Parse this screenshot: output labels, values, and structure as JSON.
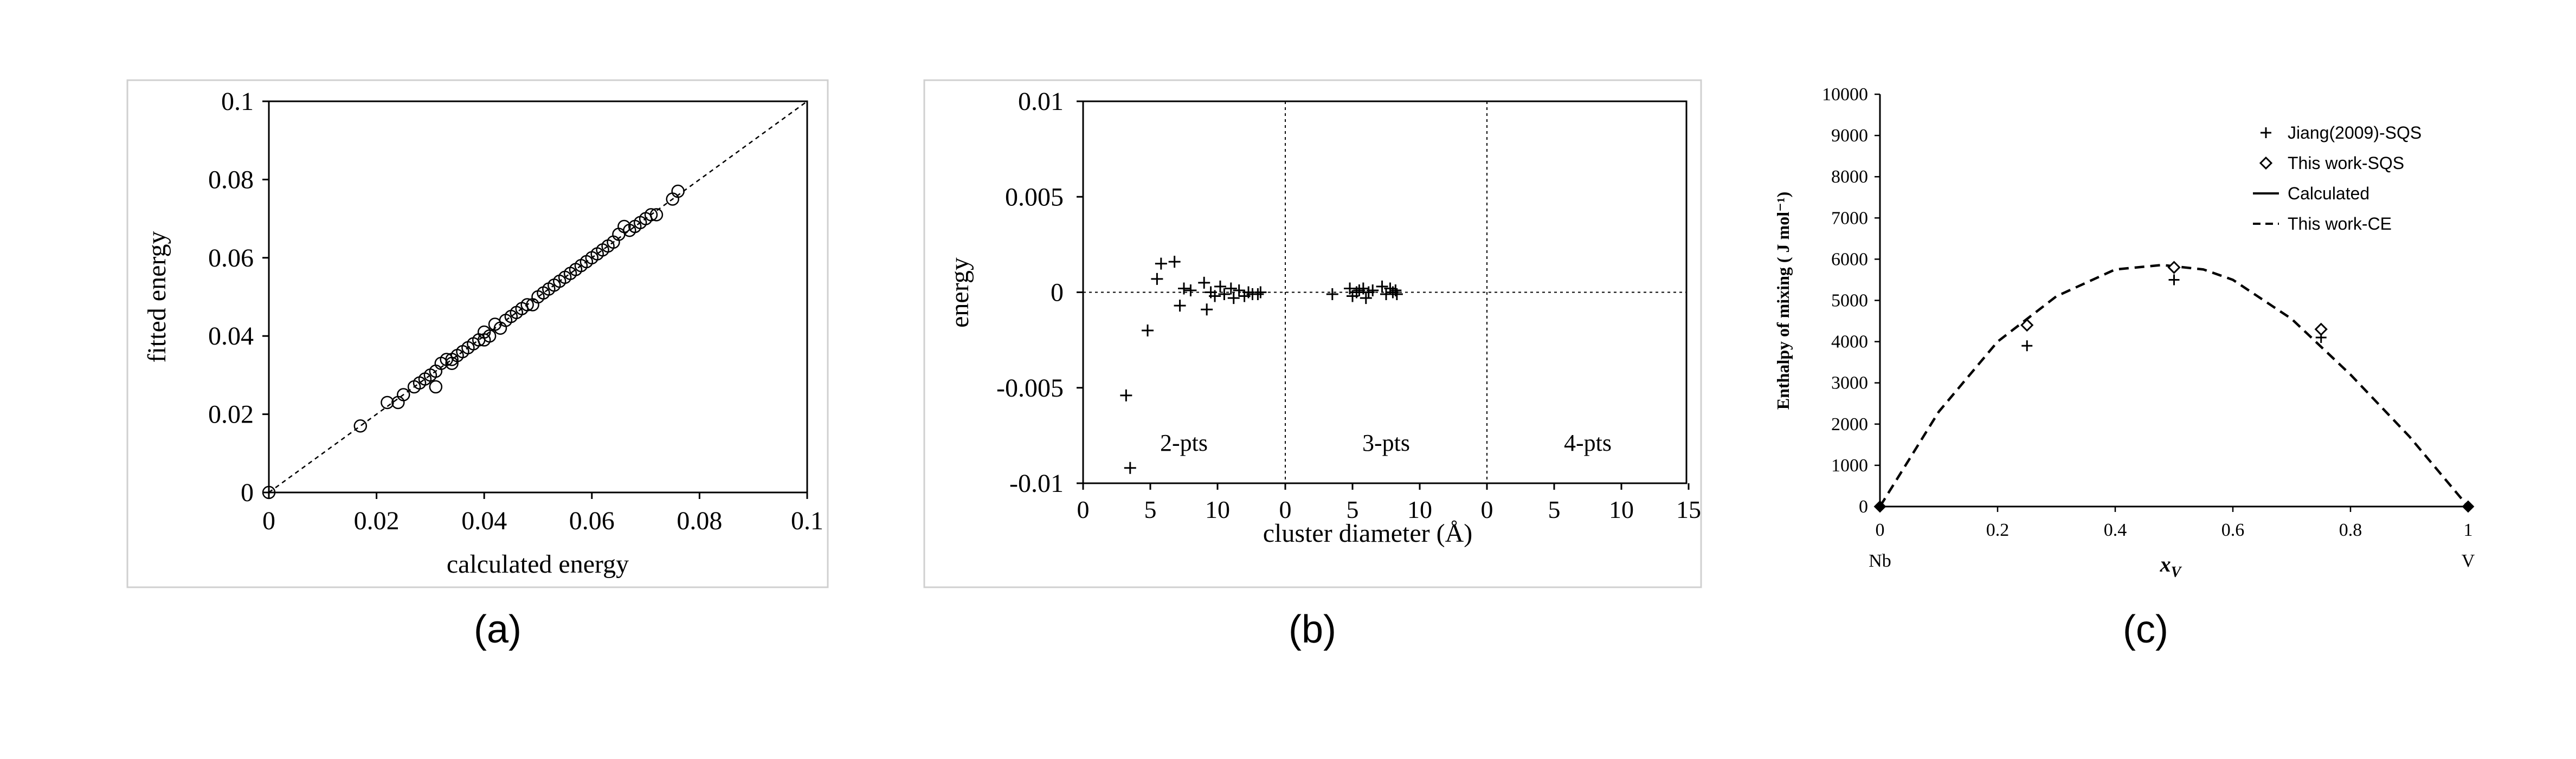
{
  "colors": {
    "ink": "#000000",
    "panel_border": "#d0d0d0",
    "background": "#ffffff"
  },
  "chart_data": [
    {
      "type": "scatter",
      "caption": "(a)",
      "xlabel": "calculated energy",
      "ylabel": "fitted energy",
      "xlim": [
        0,
        0.1
      ],
      "ylim": [
        0,
        0.1
      ],
      "x_ticks": [
        "0",
        "0.02",
        "0.04",
        "0.06",
        "0.08",
        "0.1"
      ],
      "y_ticks": [
        "0",
        "0.02",
        "0.04",
        "0.06",
        "0.08",
        "0.1"
      ],
      "reference_line": "y = x (dashed)",
      "marker": "open-circle",
      "points": [
        [
          0,
          0
        ],
        [
          0.017,
          0.017
        ],
        [
          0.022,
          0.023
        ],
        [
          0.024,
          0.023
        ],
        [
          0.025,
          0.025
        ],
        [
          0.027,
          0.027
        ],
        [
          0.028,
          0.028
        ],
        [
          0.029,
          0.029
        ],
        [
          0.03,
          0.03
        ],
        [
          0.031,
          0.031
        ],
        [
          0.031,
          0.027
        ],
        [
          0.032,
          0.033
        ],
        [
          0.033,
          0.034
        ],
        [
          0.034,
          0.034
        ],
        [
          0.034,
          0.033
        ],
        [
          0.035,
          0.035
        ],
        [
          0.036,
          0.036
        ],
        [
          0.037,
          0.037
        ],
        [
          0.038,
          0.038
        ],
        [
          0.039,
          0.039
        ],
        [
          0.04,
          0.039
        ],
        [
          0.04,
          0.041
        ],
        [
          0.041,
          0.04
        ],
        [
          0.042,
          0.043
        ],
        [
          0.043,
          0.042
        ],
        [
          0.044,
          0.044
        ],
        [
          0.045,
          0.045
        ],
        [
          0.046,
          0.046
        ],
        [
          0.047,
          0.047
        ],
        [
          0.048,
          0.048
        ],
        [
          0.049,
          0.048
        ],
        [
          0.05,
          0.05
        ],
        [
          0.051,
          0.051
        ],
        [
          0.052,
          0.052
        ],
        [
          0.053,
          0.053
        ],
        [
          0.054,
          0.054
        ],
        [
          0.055,
          0.055
        ],
        [
          0.056,
          0.056
        ],
        [
          0.057,
          0.057
        ],
        [
          0.058,
          0.058
        ],
        [
          0.059,
          0.059
        ],
        [
          0.06,
          0.06
        ],
        [
          0.061,
          0.061
        ],
        [
          0.062,
          0.062
        ],
        [
          0.063,
          0.063
        ],
        [
          0.064,
          0.064
        ],
        [
          0.065,
          0.066
        ],
        [
          0.066,
          0.068
        ],
        [
          0.067,
          0.067
        ],
        [
          0.068,
          0.068
        ],
        [
          0.069,
          0.069
        ],
        [
          0.07,
          0.07
        ],
        [
          0.071,
          0.071
        ],
        [
          0.072,
          0.071
        ],
        [
          0.075,
          0.075
        ],
        [
          0.076,
          0.077
        ]
      ]
    },
    {
      "type": "scatter",
      "caption": "(b)",
      "xlabel": "cluster diameter (Å)",
      "ylabel": "energy",
      "ylim": [
        -0.01,
        0.01
      ],
      "y_ticks": [
        "0.01",
        "0.005",
        "0",
        "-0.005",
        "-0.01"
      ],
      "x_ticks": [
        "0",
        "5",
        "10",
        "0",
        "5",
        "10",
        "0",
        "5",
        "10",
        "15"
      ],
      "grid": "dashed dividers at panel boundaries and at energy 0",
      "marker": "plus",
      "panels": [
        {
          "label": "2-pts",
          "x": [
            3.2,
            3.5,
            4.8,
            5.5,
            5.8,
            6.8,
            7.2,
            7.5,
            8.0,
            9.0,
            9.2,
            9.5,
            9.8,
            10.2,
            10.5,
            11.0,
            11.2,
            11.6,
            12.0,
            12.3,
            12.6,
            13.0,
            13.2
          ],
          "y": [
            -0.0054,
            -0.0092,
            -0.002,
            0.0007,
            0.0015,
            0.0016,
            -0.0007,
            0.0002,
            0.0001,
            0.0005,
            -0.0009,
            0.0,
            -0.0002,
            0.0003,
            -0.0001,
            0.0002,
            -0.0003,
            0.0001,
            -0.0002,
            0.0,
            -0.0001,
            -0.0001,
            0.0
          ]
        },
        {
          "label": "3-pts",
          "x": [
            3.5,
            4.8,
            5.0,
            5.3,
            5.5,
            5.8,
            6.0,
            6.2,
            6.5,
            7.2,
            7.5,
            7.8,
            8.0,
            8.2,
            8.3
          ],
          "y": [
            -0.0001,
            0.0002,
            -0.0002,
            0.0,
            0.0001,
            0.0002,
            -0.0003,
            0.0,
            0.0001,
            0.0003,
            -0.0001,
            0.0002,
            0.0,
            0.0001,
            -0.0001
          ]
        },
        {
          "label": "4-pts",
          "x": [],
          "y": []
        }
      ]
    },
    {
      "type": "line",
      "caption": "(c)",
      "ylabel": "Enthalpy of mixing ( J mol⁻¹)",
      "xlabel_main": "x",
      "xlabel_sub": "V",
      "left_end_label": "Nb",
      "right_end_label": "V",
      "xlim": [
        0,
        1
      ],
      "ylim": [
        0,
        10000
      ],
      "x_ticks": [
        "0",
        "0.2",
        "0.4",
        "0.6",
        "0.8",
        "1"
      ],
      "y_ticks": [
        "0",
        "1000",
        "2000",
        "3000",
        "4000",
        "5000",
        "6000",
        "7000",
        "8000",
        "9000",
        "10000"
      ],
      "legend_position": "top-right",
      "series": [
        {
          "name": "Jiang(2009)-SQS",
          "marker": "plus",
          "x": [
            0.25,
            0.5,
            0.75
          ],
          "y": [
            3900,
            5500,
            4100
          ]
        },
        {
          "name": "This work-SQS",
          "marker": "open-diamond",
          "x": [
            0.25,
            0.5,
            0.75
          ],
          "y": [
            4400,
            5800,
            4300
          ]
        },
        {
          "name": "Calculated",
          "style": "solid",
          "x": [],
          "y": []
        },
        {
          "name": "This work-CE",
          "style": "dashed",
          "x": [
            0,
            0.1,
            0.2,
            0.3,
            0.4,
            0.48,
            0.55,
            0.6,
            0.7,
            0.8,
            0.9,
            1.0
          ],
          "y": [
            0,
            2300,
            4000,
            5100,
            5750,
            5860,
            5750,
            5500,
            4550,
            3200,
            1700,
            0
          ]
        }
      ],
      "endpoints": {
        "marker": "filled-diamond",
        "x": [
          0,
          1
        ],
        "y": [
          0,
          0
        ]
      }
    }
  ]
}
